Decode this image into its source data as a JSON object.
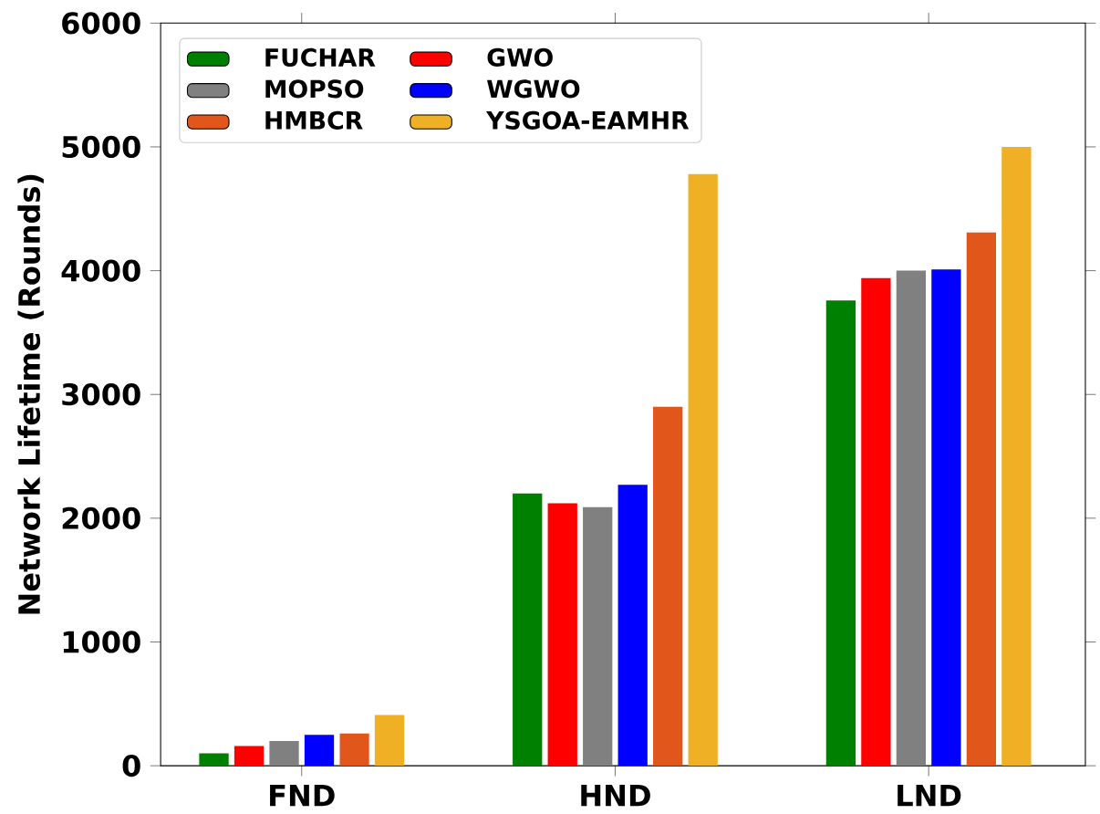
{
  "chart_data": {
    "type": "bar",
    "ylabel": "Network Lifetime (Rounds)",
    "categories": [
      "FND",
      "HND",
      "LND"
    ],
    "series": [
      {
        "name": "FUCHAR",
        "color": "#008000",
        "values": [
          100,
          2200,
          3760
        ]
      },
      {
        "name": "GWO",
        "color": "#ff0000",
        "values": [
          160,
          2120,
          3940
        ]
      },
      {
        "name": "MOPSO",
        "color": "#808080",
        "values": [
          200,
          2090,
          4000
        ]
      },
      {
        "name": "WGWO",
        "color": "#0000ff",
        "values": [
          250,
          2270,
          4010
        ]
      },
      {
        "name": "HMBCR",
        "color": "#e0561b",
        "values": [
          260,
          2900,
          4310
        ]
      },
      {
        "name": "YSGOA-EAMHR",
        "color": "#efb026",
        "values": [
          410,
          4780,
          5000
        ]
      }
    ],
    "ylim": [
      0,
      6000
    ],
    "yticks": [
      0,
      1000,
      2000,
      3000,
      4000,
      5000,
      6000
    ],
    "grid": false,
    "legend": "top left"
  }
}
